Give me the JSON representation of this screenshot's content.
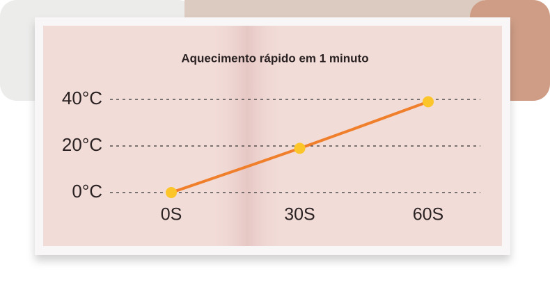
{
  "chart_data": {
    "type": "line",
    "title": "Aquecimento rápido em 1 minuto",
    "categories": [
      "0S",
      "30S",
      "60S"
    ],
    "values": [
      0,
      19,
      39
    ],
    "color": "#f07f2c",
    "marker_color": "#fcc52a",
    "ylim": [
      0,
      40
    ],
    "yticks": [
      {
        "value": 0,
        "label": "0°C"
      },
      {
        "value": 20,
        "label": "20°C"
      },
      {
        "value": 40,
        "label": "40°C"
      }
    ],
    "grid": true
  }
}
